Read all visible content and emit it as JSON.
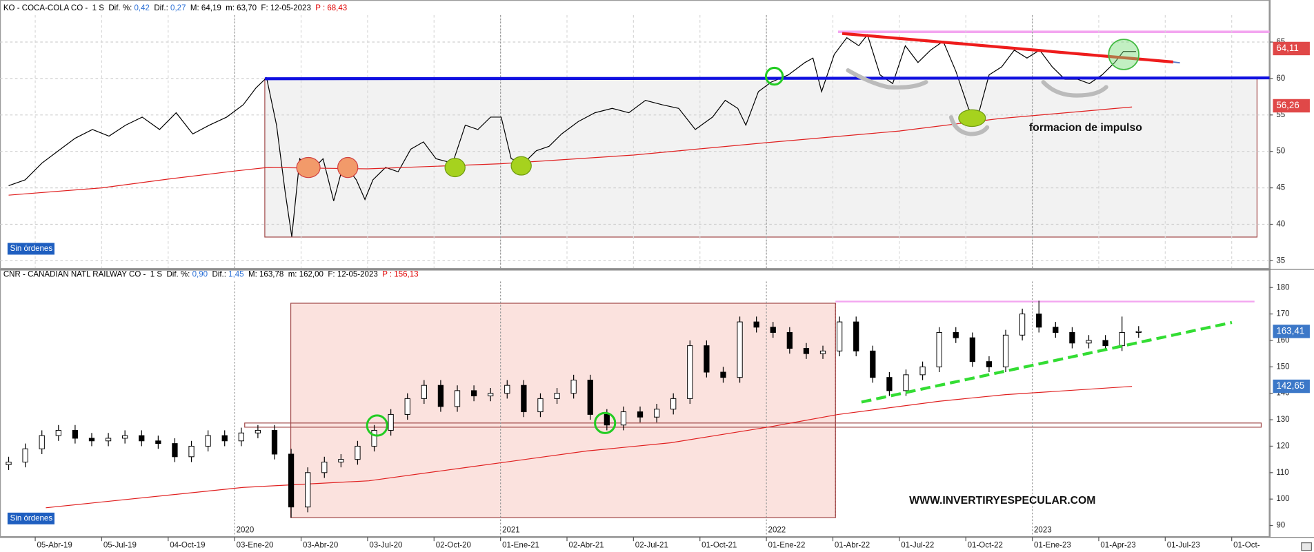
{
  "chart_data": [
    {
      "type": "line",
      "header": [
        {
          "text": "KO - COCA-COLA CO -  1 S  Dif. %: ",
          "color": "#000000"
        },
        {
          "text": "0,42",
          "color": "#2a6fd6"
        },
        {
          "text": "  Dif.: ",
          "color": "#000000"
        },
        {
          "text": "0,27",
          "color": "#2a6fd6"
        },
        {
          "text": "  M: 64,19  m: 63,70  F: 12-05-2023  ",
          "color": "#000000"
        },
        {
          "text": "P : 68,43",
          "color": "#e00000"
        }
      ],
      "status": "Sin órdenes",
      "annotation": "formacion de impulso",
      "xlim": [
        -0.53,
        18.57
      ],
      "ylim": [
        34,
        68.7
      ],
      "yticks": [
        35,
        40,
        45,
        50,
        55,
        60,
        65
      ],
      "grid": true,
      "series": [
        {
          "color": "#000000",
          "x": [
            -0.4,
            -0.15,
            0.1,
            0.35,
            0.6,
            0.86,
            1.11,
            1.36,
            1.61,
            1.87,
            2.12,
            2.37,
            2.62,
            2.88,
            3.13,
            3.32,
            3.48,
            3.63,
            3.76,
            3.86,
            3.98,
            4.14,
            4.33,
            4.49,
            4.64,
            4.83,
            4.96,
            5.08,
            5.27,
            5.46,
            5.65,
            5.84,
            6.03,
            6.28,
            6.47,
            6.66,
            6.85,
            7.01,
            7.16,
            7.35,
            7.54,
            7.73,
            7.92,
            8.17,
            8.42,
            8.68,
            8.93,
            9.18,
            9.43,
            9.68,
            9.93,
            10.19,
            10.38,
            10.57,
            10.69,
            10.88,
            11.07,
            11.33,
            11.58,
            11.7,
            11.83,
            12.02,
            12.21,
            12.39,
            12.52,
            12.71,
            12.9,
            13.09,
            13.28,
            13.47,
            13.66,
            13.85,
            14.04,
            14.16,
            14.35,
            14.54,
            14.73,
            14.92,
            15.11,
            15.3,
            15.49,
            15.68,
            15.86,
            16.05,
            16.24,
            16.37,
            16.56
          ],
          "values": [
            45.3,
            46.1,
            48.4,
            50.1,
            51.8,
            53,
            52.1,
            53.6,
            54.7,
            53,
            55.3,
            52.4,
            53.6,
            54.7,
            56.4,
            58.7,
            60.1,
            53.6,
            44.4,
            38.3,
            49,
            47.2,
            49,
            43.2,
            48.4,
            46.1,
            43.4,
            46.1,
            47.8,
            47.2,
            50.3,
            51.3,
            49,
            48.4,
            53.6,
            53,
            54.7,
            54.7,
            49,
            48.4,
            50.1,
            50.7,
            52.4,
            54.1,
            55.3,
            55.9,
            55.3,
            57,
            56.4,
            55.9,
            53,
            54.7,
            57,
            55.9,
            53.6,
            58.2,
            59.5,
            60.5,
            62.2,
            62.8,
            58.2,
            63.3,
            65.6,
            64.5,
            66,
            60.5,
            59.3,
            64.5,
            62.2,
            63.9,
            65.1,
            61,
            55.9,
            54.1,
            60.5,
            61.6,
            63.9,
            62.8,
            63.9,
            61.6,
            59.9,
            59.9,
            59.3,
            60.5,
            62.2,
            63.7,
            63.7
          ]
        },
        {
          "color": "#e02020",
          "x": [
            -0.4,
            1,
            2,
            3,
            3.5,
            5,
            7,
            9,
            11,
            13,
            14.5,
            16.5
          ],
          "values": [
            44,
            45,
            46.2,
            47.3,
            47.8,
            47.6,
            48.3,
            49.5,
            51.2,
            52.8,
            54.5,
            56.1
          ]
        }
      ],
      "price_labels": [
        {
          "value": 64.11,
          "label": "64,11",
          "color": "#e04848"
        },
        {
          "value": 56.26,
          "label": "56,26",
          "color": "#e04848"
        }
      ]
    },
    {
      "type": "candlestick",
      "header": [
        {
          "text": "CNR - CANADIAN NATL RAILWAY CO -  1 S  Dif. %: ",
          "color": "#000000"
        },
        {
          "text": "0,90",
          "color": "#2a6fd6"
        },
        {
          "text": "  Dif.: ",
          "color": "#000000"
        },
        {
          "text": "1,45",
          "color": "#2a6fd6"
        },
        {
          "text": "  M: 163,78  m: 162,00  F: 12-05-2023  ",
          "color": "#000000"
        },
        {
          "text": "P : 156,13",
          "color": "#e00000"
        }
      ],
      "status": "Sin órdenes",
      "annotation": "WWW.INVERTIRYESPECULAR.COM",
      "xlim": [
        -0.53,
        18.57
      ],
      "ylim": [
        86,
        182.3
      ],
      "yticks": [
        90,
        100,
        110,
        120,
        130,
        140,
        150,
        160,
        170,
        180
      ],
      "grid": false,
      "xticks": [
        {
          "value": 0,
          "label": "05-Abr-19"
        },
        {
          "value": 1,
          "label": "05-Jul-19"
        },
        {
          "value": 2,
          "label": "04-Oct-19"
        },
        {
          "value": 3,
          "label": "03-Ene-20"
        },
        {
          "value": 4,
          "label": "03-Abr-20"
        },
        {
          "value": 5,
          "label": "03-Jul-20"
        },
        {
          "value": 6,
          "label": "02-Oct-20"
        },
        {
          "value": 7,
          "label": "01-Ene-21"
        },
        {
          "value": 8,
          "label": "02-Abr-21"
        },
        {
          "value": 9,
          "label": "02-Jul-21"
        },
        {
          "value": 10,
          "label": "01-Oct-21"
        },
        {
          "value": 11,
          "label": "01-Ene-22"
        },
        {
          "value": 12,
          "label": "01-Abr-22"
        },
        {
          "value": 13,
          "label": "01-Jul-22"
        },
        {
          "value": 14,
          "label": "01-Oct-22"
        },
        {
          "value": 15,
          "label": "01-Ene-23"
        },
        {
          "value": 16,
          "label": "01-Apr-23"
        },
        {
          "value": 17,
          "label": "01-Jul-23"
        },
        {
          "value": 18,
          "label": "01-Oct-"
        }
      ],
      "year_ticks": [
        {
          "value": 3,
          "label": "2020"
        },
        {
          "value": 7,
          "label": "2021"
        },
        {
          "value": 11,
          "label": "2022"
        },
        {
          "value": 15,
          "label": "2023"
        }
      ],
      "x": [
        -0.4,
        -0.15,
        0.1,
        0.35,
        0.6,
        0.85,
        1.1,
        1.35,
        1.6,
        1.85,
        2.1,
        2.35,
        2.6,
        2.85,
        3.1,
        3.35,
        3.6,
        3.85,
        4.1,
        4.35,
        4.6,
        4.85,
        5.1,
        5.35,
        5.6,
        5.85,
        6.1,
        6.35,
        6.6,
        6.85,
        7.1,
        7.35,
        7.6,
        7.85,
        8.1,
        8.35,
        8.6,
        8.85,
        9.1,
        9.35,
        9.6,
        9.85,
        10.1,
        10.35,
        10.6,
        10.85,
        11.1,
        11.35,
        11.6,
        11.85,
        12.1,
        12.35,
        12.6,
        12.85,
        13.1,
        13.35,
        13.6,
        13.85,
        14.1,
        14.35,
        14.6,
        14.85,
        15.1,
        15.35,
        15.6,
        15.85,
        16.1,
        16.35,
        16.6
      ],
      "open": [
        113,
        114,
        119,
        124,
        126,
        123,
        122,
        123,
        124,
        122,
        121,
        116,
        120,
        124,
        122,
        125,
        126,
        117,
        97,
        110,
        114,
        115,
        120,
        126,
        132,
        138,
        143,
        135,
        141,
        139,
        140,
        143,
        133,
        138,
        140,
        145,
        132,
        128,
        133,
        131,
        134,
        138,
        158,
        148,
        146,
        167,
        165,
        163,
        157,
        155,
        156,
        167,
        156,
        146,
        141,
        147,
        150,
        163,
        161,
        152,
        150,
        162,
        170,
        165,
        163,
        159,
        160,
        158,
        163
      ],
      "high": [
        116,
        121,
        126,
        128,
        128,
        125,
        125,
        126,
        126,
        124,
        123,
        122,
        126,
        126,
        127,
        128,
        128,
        119,
        112,
        116,
        117,
        122,
        128,
        134,
        140,
        145,
        145,
        143,
        143,
        142,
        145,
        145,
        140,
        142,
        147,
        147,
        134,
        135,
        135,
        136,
        140,
        160,
        160,
        150,
        169,
        169,
        167,
        165,
        159,
        158,
        169,
        169,
        158,
        148,
        149,
        152,
        165,
        165,
        163,
        154,
        164,
        172,
        175,
        167,
        165,
        162,
        162,
        169,
        165.4
      ],
      "low": [
        111,
        112,
        117,
        122,
        121,
        120,
        120,
        121,
        120,
        119,
        114,
        114,
        118,
        120,
        120,
        123,
        115,
        93,
        95,
        108,
        112,
        113,
        118,
        124,
        130,
        136,
        133,
        133,
        137,
        137,
        138,
        131,
        131,
        136,
        138,
        130,
        126,
        126,
        129,
        129,
        132,
        136,
        146,
        144,
        144,
        163,
        161,
        155,
        153,
        153,
        154,
        154,
        144,
        139,
        139,
        145,
        148,
        159,
        150,
        148,
        148,
        160,
        163,
        161,
        157,
        157,
        156,
        156,
        161
      ],
      "close": [
        114,
        119,
        124,
        126,
        123,
        122,
        123,
        124,
        122,
        121,
        116,
        120,
        124,
        122,
        125,
        126,
        117,
        97,
        110,
        114,
        115,
        120,
        126,
        132,
        138,
        143,
        135,
        141,
        139,
        140,
        143,
        133,
        138,
        140,
        145,
        132,
        128,
        133,
        131,
        134,
        138,
        158,
        148,
        146,
        167,
        165,
        163,
        157,
        155,
        156,
        167,
        156,
        146,
        141,
        147,
        150,
        163,
        161,
        152,
        150,
        162,
        170,
        165,
        163,
        159,
        160,
        158,
        163,
        163.4
      ],
      "series": [
        {
          "color": "#e02020",
          "x": [
            0.16,
            3.13,
            5.02,
            6.5,
            8.3,
            9.56,
            11.07,
            12.08,
            13.6,
            14.6,
            16.5
          ],
          "values": [
            96.7,
            104.4,
            106.9,
            112,
            118.2,
            121.3,
            127.4,
            132,
            137,
            139.5,
            142.6
          ]
        }
      ],
      "price_labels": [
        {
          "value": 163.41,
          "label": "163,41",
          "color": "#3c78c8"
        },
        {
          "value": 142.65,
          "label": "142,65",
          "color": "#3c78c8"
        }
      ]
    }
  ]
}
